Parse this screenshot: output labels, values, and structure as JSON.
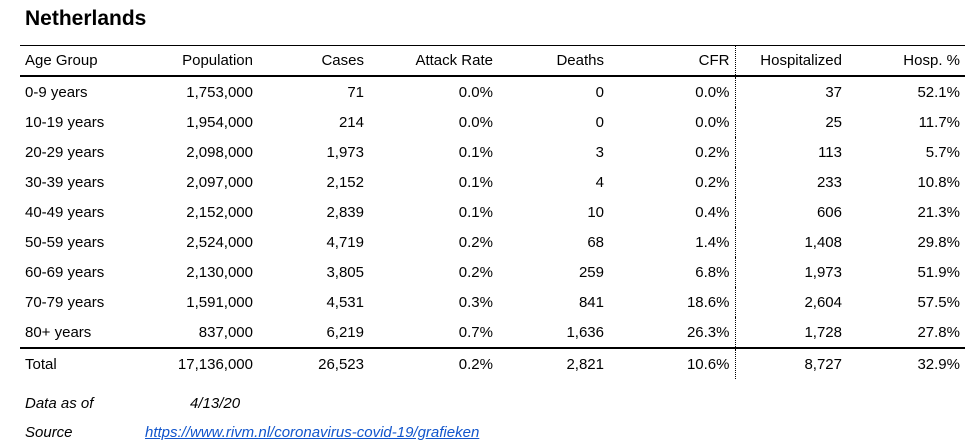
{
  "title": "Netherlands",
  "colors": {
    "text": "#000000",
    "border": "#000000",
    "link_blue": "#1155CC",
    "background": "#FFFFFF"
  },
  "footer": {
    "data_as_of_label": "Data as of",
    "data_as_of_value": "4/13/20",
    "source_label": "Source",
    "source_link": "https://www.rivm.nl/coronavirus-covid-19/grafieken"
  },
  "chart_data": {
    "type": "table",
    "title": "Netherlands",
    "columns": [
      "Age Group",
      "Population",
      "Cases",
      "Attack Rate",
      "Deaths",
      "CFR",
      "Hospitalized",
      "Hosp. %"
    ],
    "column_keys": [
      "age-group",
      "population",
      "cases",
      "attack-rate",
      "deaths",
      "cfr",
      "hospitalized",
      "hosp-pct"
    ],
    "rows": [
      [
        "0-9 years",
        "1,753,000",
        "71",
        "0.0%",
        "0",
        "0.0%",
        "37",
        "52.1%"
      ],
      [
        "10-19 years",
        "1,954,000",
        "214",
        "0.0%",
        "0",
        "0.0%",
        "25",
        "11.7%"
      ],
      [
        "20-29 years",
        "2,098,000",
        "1,973",
        "0.1%",
        "3",
        "0.2%",
        "113",
        "5.7%"
      ],
      [
        "30-39 years",
        "2,097,000",
        "2,152",
        "0.1%",
        "4",
        "0.2%",
        "233",
        "10.8%"
      ],
      [
        "40-49 years",
        "2,152,000",
        "2,839",
        "0.1%",
        "10",
        "0.4%",
        "606",
        "21.3%"
      ],
      [
        "50-59 years",
        "2,524,000",
        "4,719",
        "0.2%",
        "68",
        "1.4%",
        "1,408",
        "29.8%"
      ],
      [
        "60-69 years",
        "2,130,000",
        "3,805",
        "0.2%",
        "259",
        "6.8%",
        "1,973",
        "51.9%"
      ],
      [
        "70-79 years",
        "1,591,000",
        "4,531",
        "0.3%",
        "841",
        "18.6%",
        "2,604",
        "57.5%"
      ],
      [
        "80+ years",
        "837,000",
        "6,219",
        "0.7%",
        "1,636",
        "26.3%",
        "1,728",
        "27.8%"
      ]
    ],
    "total_row": [
      "Total",
      "17,136,000",
      "26,523",
      "0.2%",
      "2,821",
      "10.6%",
      "8,727",
      "32.9%"
    ],
    "data_as_of": "4/13/20",
    "source_url": "https://www.rivm.nl/coronavirus-covid-19/grafieken",
    "layout": {
      "numeric_alignment": "right",
      "dotted_separator_after_column": "CFR",
      "rules": [
        "above header",
        "below header",
        "above total row"
      ]
    }
  }
}
